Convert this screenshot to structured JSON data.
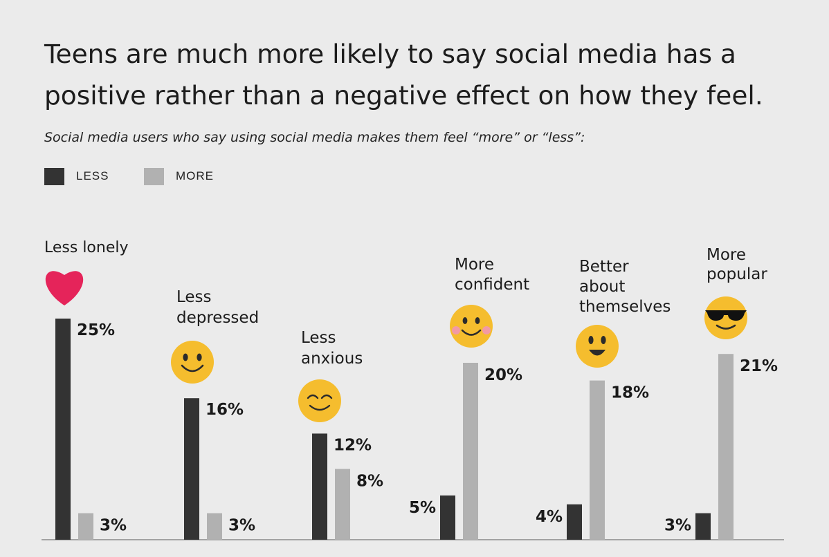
{
  "title": "Teens are much more likely to say social media has a positive rather than a negative effect on how they feel.",
  "subtitle": "Social media users who say using social media makes them feel “more” or “less”:",
  "colors": {
    "background": "#ebebeb",
    "less": "#333333",
    "more": "#b1b1b1",
    "heart": "#e5245a",
    "emoji": "#f5bd2e",
    "axis": "#8a8a8a"
  },
  "chart_data": {
    "type": "bar",
    "title": "Teens are much more likely to say social media has a positive rather than a negative effect on how they feel.",
    "subtitle": "Social media users who say using social media makes them feel “more” or “less”:",
    "categories": [
      "Less lonely",
      "Less depressed",
      "Less anxious",
      "More confident",
      "Better about themselves",
      "More popular"
    ],
    "category_lines": [
      [
        "Less lonely"
      ],
      [
        "Less",
        "depressed"
      ],
      [
        "Less",
        "anxious"
      ],
      [
        "More",
        "confident"
      ],
      [
        "Better",
        "about",
        "themselves"
      ],
      [
        "More",
        "popular"
      ]
    ],
    "icons": [
      "heart-icon",
      "smile-icon",
      "blush-smile-icon",
      "rosy-cheeks-smile-icon",
      "grin-icon",
      "sunglasses-icon"
    ],
    "series": [
      {
        "name": "LESS",
        "values": [
          25,
          16,
          12,
          5,
          4,
          3
        ],
        "labels": [
          "25%",
          "16%",
          "12%",
          "5%",
          "4%",
          "3%"
        ]
      },
      {
        "name": "MORE",
        "values": [
          3,
          3,
          8,
          20,
          18,
          21
        ],
        "labels": [
          "3%",
          "3%",
          "8%",
          "20%",
          "18%",
          "21%"
        ]
      }
    ],
    "ylim": [
      0,
      25
    ],
    "grid": false,
    "legend": "top-left"
  }
}
